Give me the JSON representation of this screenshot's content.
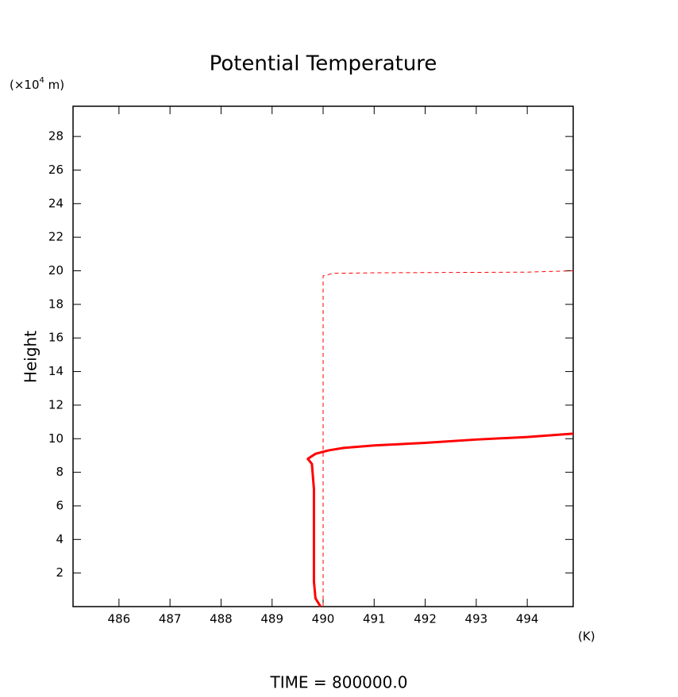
{
  "chart_data": {
    "type": "line",
    "title": "Potential Temperature",
    "y_unit": {
      "prefix": "(×10",
      "exponent": "4",
      "suffix": " m)"
    },
    "ylabel": "Height",
    "xlabel": "(K)",
    "footer": "TIME = 800000.0",
    "xlim": [
      485.1,
      494.9
    ],
    "ylim": [
      0,
      29.8
    ],
    "xticks": [
      486,
      487,
      488,
      489,
      490,
      491,
      492,
      493,
      494
    ],
    "yticks": [
      2,
      4,
      6,
      8,
      10,
      12,
      14,
      16,
      18,
      20,
      22,
      24,
      26,
      28
    ],
    "series": [
      {
        "color": "#ff0000",
        "dashed": false,
        "x": [
          489.95,
          489.85,
          489.82,
          489.82,
          489.78,
          489.7,
          489.85,
          490.1,
          490.4,
          491,
          492,
          493,
          494,
          494.9
        ],
        "values": [
          0,
          0.5,
          1.5,
          7,
          8.5,
          8.8,
          9.1,
          9.3,
          9.45,
          9.6,
          9.75,
          9.95,
          10.1,
          10.3
        ]
      },
      {
        "color": "#ff0000",
        "dashed": true,
        "x": [
          490,
          490,
          490.2,
          491,
          494,
          494.9
        ],
        "values": [
          0,
          19.7,
          19.85,
          19.88,
          19.92,
          20
        ]
      }
    ]
  }
}
